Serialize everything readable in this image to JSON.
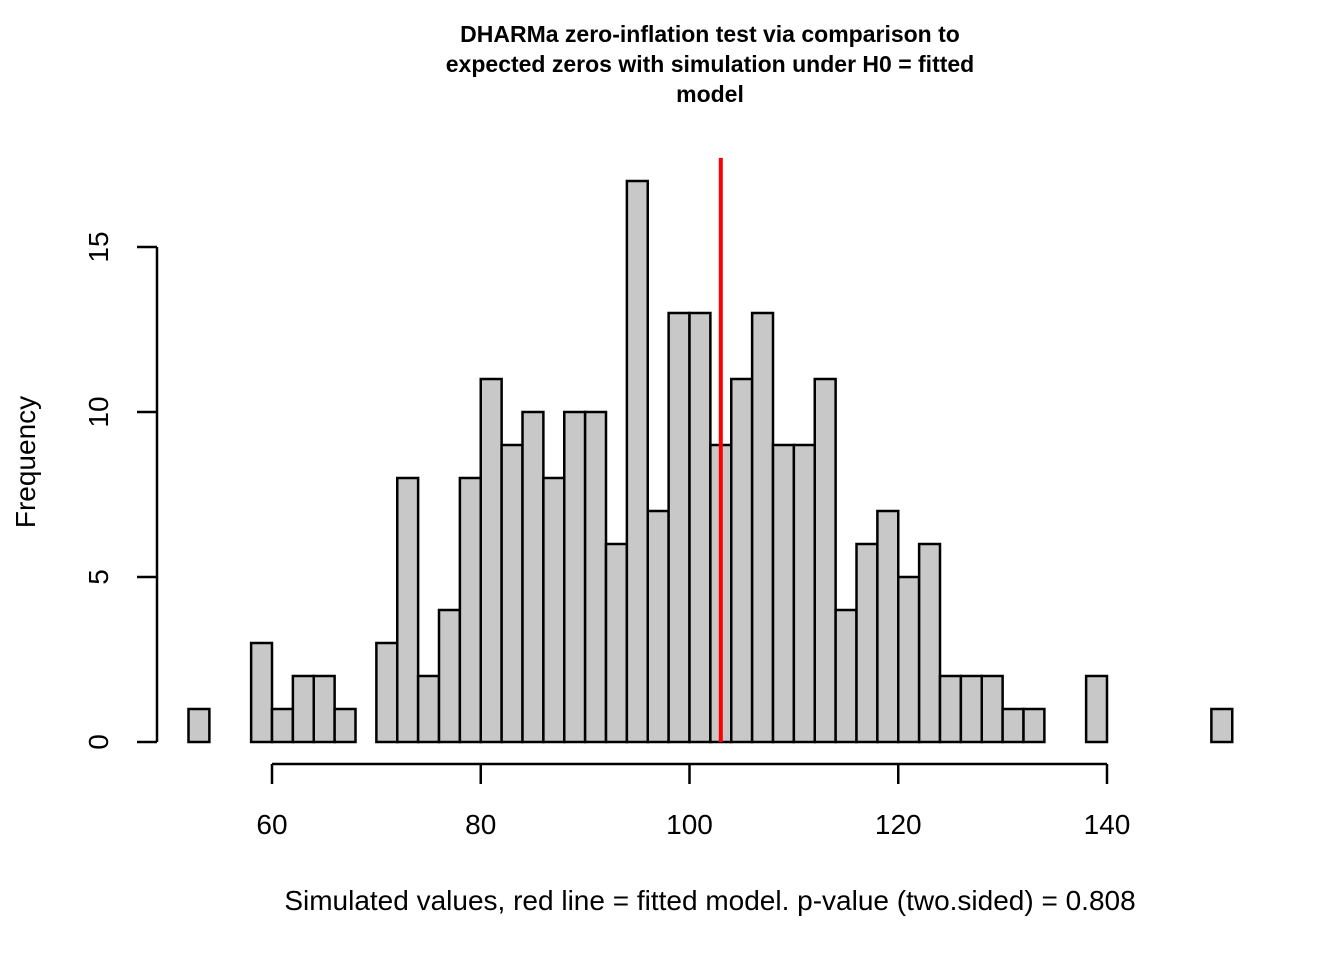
{
  "chart_data": {
    "type": "bar",
    "subtype": "histogram",
    "title_lines": [
      "DHARMa zero-inflation test via comparison to",
      "expected zeros with simulation under H0 = fitted",
      "model"
    ],
    "xlabel": "Simulated values, red line = fitted model. p-value (two.sided) = 0.808",
    "ylabel": "Frequency",
    "bin_start": 52,
    "bin_width": 2,
    "counts": [
      1,
      0,
      0,
      3,
      1,
      2,
      2,
      1,
      0,
      3,
      8,
      2,
      4,
      8,
      11,
      9,
      10,
      8,
      10,
      10,
      6,
      17,
      7,
      13,
      13,
      9,
      11,
      13,
      9,
      9,
      11,
      4,
      6,
      7,
      5,
      6,
      2,
      2,
      2,
      1,
      1,
      0,
      0,
      2,
      0,
      0,
      0,
      0,
      0,
      1
    ],
    "xlim": [
      52,
      152
    ],
    "ylim": [
      0,
      17.7
    ],
    "x_ticks": [
      60,
      80,
      100,
      120,
      140
    ],
    "x_tick_labels": [
      "60",
      "80",
      "100",
      "120",
      "140"
    ],
    "y_ticks": [
      0,
      5,
      10,
      15
    ],
    "y_tick_labels": [
      "0",
      "5",
      "10",
      "15"
    ],
    "observed_value": 103,
    "observed_line_color": "#ff0000",
    "bar_fill": "#c8c8c8",
    "grid": false,
    "legend": "none"
  }
}
